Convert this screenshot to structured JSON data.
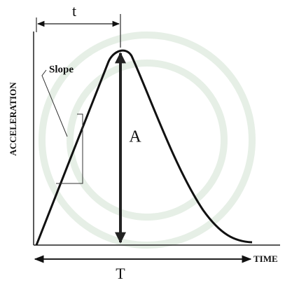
{
  "labels": {
    "t": "t",
    "slope": "Slope",
    "y_axis": "ACCELERATION",
    "amplitude": "A",
    "x_axis": "TIME",
    "period": "T"
  }
}
